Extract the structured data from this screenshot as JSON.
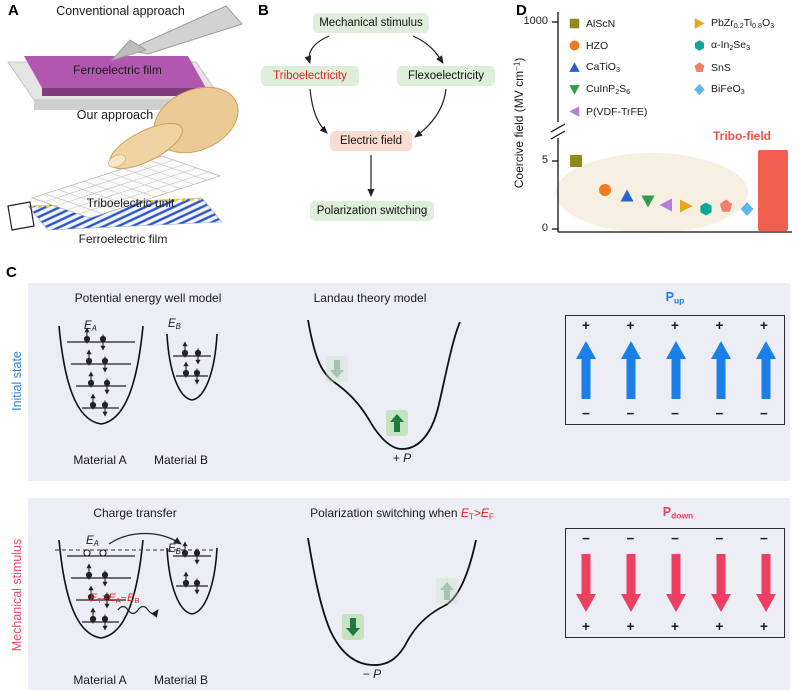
{
  "panelA": {
    "label": "A",
    "conventional_title": "Conventional approach",
    "ferroelectric_film_label": "Ferroelectric film",
    "our_title": "Our approach",
    "triboelectric_unit_label": "Triboelectric unit",
    "ferroelectric_film_label2": "Ferroelectric film"
  },
  "panelB": {
    "label": "B",
    "mechanical_stimulus": "Mechanical stimulus",
    "triboelectricity": "Triboelectricity",
    "flexoelectricity": "Flexoelectricity",
    "electric_field": "Electric field",
    "polarization_switching": "Polarization switching"
  },
  "panelD": {
    "label": "D"
  },
  "chart_data": {
    "type": "scatter",
    "title": "",
    "ylabel": "Coercive field (MV cm⁻¹)",
    "ylabel_html": "Coercive field (MV cm<sup>−1</sup>)",
    "ytick_labels": [
      "0",
      "5",
      "1000"
    ],
    "ylim": [
      0,
      1000
    ],
    "axis_break": true,
    "legend_position": "top-inside",
    "points": [
      {
        "name": "AlScN",
        "label_html": "AlScN",
        "marker": "square",
        "color": "#8f8a1a",
        "value_MV_cm": 5.1
      },
      {
        "name": "HZO",
        "label_html": "HZO",
        "marker": "circle",
        "color": "#f07d1d",
        "value_MV_cm": 3.0
      },
      {
        "name": "CaTiO3",
        "label_html": "CaTiO<sub>3</sub>",
        "marker": "triangle-up",
        "color": "#2a63c8",
        "value_MV_cm": 2.5
      },
      {
        "name": "CuInP2S6",
        "label_html": "CuInP<sub>2</sub>S<sub>6</sub>",
        "marker": "triangle-down",
        "color": "#2f9e49",
        "value_MV_cm": 2.2
      },
      {
        "name": "P(VDF-TrFE)",
        "label_html": "P(VDF-TrFE)",
        "marker": "triangle-left",
        "color": "#b57ed8",
        "value_MV_cm": 1.9
      },
      {
        "name": "PbZr0.2Ti0.8O3",
        "label_html": "PbZr<sub>0.2</sub>Ti<sub>0.8</sub>O<sub>3</sub>",
        "marker": "triangle-right",
        "color": "#dfa81f",
        "value_MV_cm": 1.8
      },
      {
        "name": "a-In2Se3",
        "label_html": "α-In<sub>2</sub>Se<sub>3</sub>",
        "marker": "hexagon",
        "color": "#0aa79a",
        "value_MV_cm": 1.6
      },
      {
        "name": "SnS",
        "label_html": "SnS",
        "marker": "pentagon",
        "color": "#f2806e",
        "value_MV_cm": 1.8
      },
      {
        "name": "BiFeO3",
        "label_html": "BiFeO<sub>3</sub>",
        "marker": "diamond",
        "color": "#5cb8e8",
        "value_MV_cm": 1.6
      }
    ],
    "bar": {
      "name": "Tribo-field",
      "color": "#f4604f",
      "value_MV_cm": 1000
    }
  },
  "panelC": {
    "label": "C",
    "plus": "+",
    "minus": "−",
    "row1": {
      "side_label": "Initial state",
      "well_title": "Potential energy well model",
      "landau_title": "Landau theory model",
      "p_title_html": "P<sub>up</sub>",
      "ea_html": "<i>E</i><sub>A</sub>",
      "eb_html": "<i>E</i><sub>B</sub>",
      "material_a": "Material A",
      "material_b": "Material B",
      "min_label_html": "+ <i>P</i>"
    },
    "row2": {
      "side_label": "Mechanical stimulus",
      "well_title": "Charge transfer",
      "landau_title_prefix": "Polarization switching when ",
      "landau_condition_html": "<i>E</i><sub>T</sub>><i>E</i><sub>F</sub>",
      "p_title_html": "P<sub>down</sub>",
      "ea_html": "<i>E</i><sub>A</sub>",
      "eb_html": "<i>E</i><sub>B</sub>",
      "et_formula_html": "<i>E</i><sub>T</sub>=<i>E</i><sub>A</sub>−<i>E</i><sub>B</sub>",
      "material_a": "Material A",
      "material_b": "Material B",
      "min_label_html": "− <i>P</i>"
    }
  },
  "colors": {
    "ferroelectric_film": "#b257af",
    "flow_box_green": "#ddeeda",
    "flow_box_pink": "#fbdcd2",
    "triboelectricity_text": "#e42320",
    "initial_state_label": "#2b7fd0",
    "mechanical_stimulus_label": "#ee4a6b",
    "p_up": "#1b7fe8",
    "p_down": "#ee3f63",
    "landau_arrow_green": "#1f7a3d",
    "landau_box_green": "#c5e3c2",
    "panel_c_bg": "#ededf5",
    "tribo_bar": "#f4604f",
    "highlight_ellipse": "#f7efe2"
  }
}
